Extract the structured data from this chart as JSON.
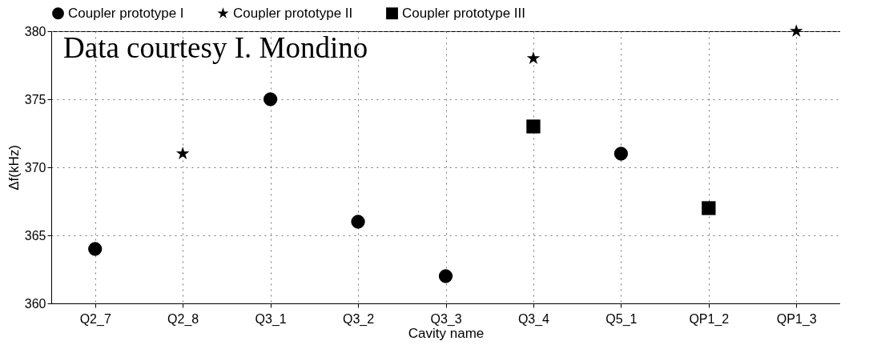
{
  "chart_data": {
    "type": "scatter",
    "xlabel": "Cavity name",
    "ylabel": "Δf(kHz)",
    "annotations": [
      "Data courtesy I. Mondino"
    ],
    "categories": [
      "Q2_7",
      "Q2_8",
      "Q3_1",
      "Q3_2",
      "Q3_3",
      "Q3_4",
      "Q5_1",
      "QP1_2",
      "QP1_3"
    ],
    "series": [
      {
        "name": "Coupler prototype I",
        "color": "#000000",
        "marker": "circle",
        "values": [
          364,
          null,
          375,
          366,
          362,
          null,
          371,
          null,
          null
        ]
      },
      {
        "name": "Coupler prototype II",
        "color": "#000000",
        "marker": "star",
        "values": [
          null,
          371,
          null,
          null,
          null,
          378,
          null,
          null,
          380
        ]
      },
      {
        "name": "Coupler prototype III",
        "color": "#000000",
        "marker": "square",
        "values": [
          null,
          null,
          null,
          null,
          null,
          373,
          null,
          367,
          null
        ]
      }
    ],
    "ylim": [
      360,
      380
    ],
    "yticks": [
      360,
      365,
      370,
      375,
      380
    ],
    "grid": true,
    "legend": "top"
  }
}
